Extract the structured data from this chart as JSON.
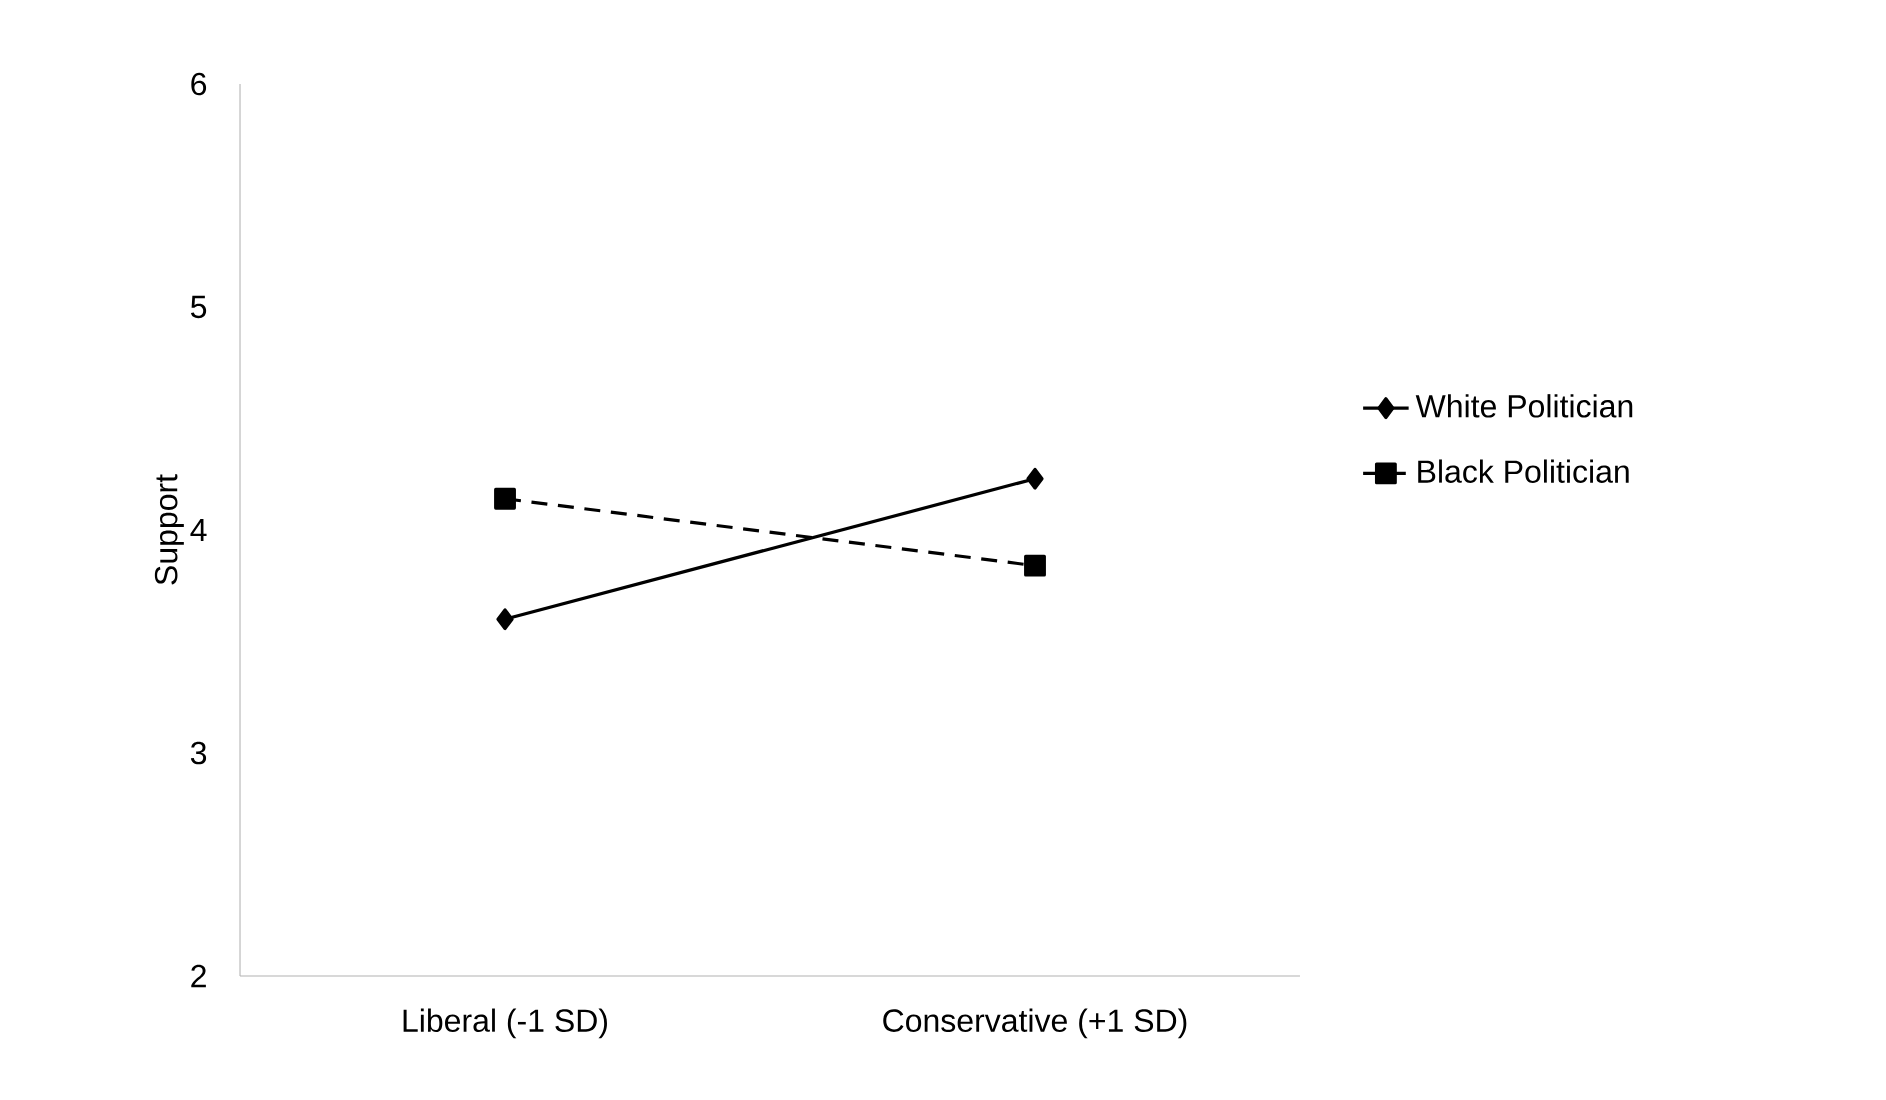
{
  "chart_data": {
    "type": "line",
    "ylabel": "Support",
    "categories": [
      "Liberal (-1 SD)",
      "Conservative (+1 SD)"
    ],
    "series": [
      {
        "name": "White Politician",
        "color": "#000000",
        "values": [
          3.6,
          4.23
        ],
        "marker": "diamond",
        "line_style": "solid"
      },
      {
        "name": "Black Politician",
        "color": "#000000",
        "values": [
          4.14,
          3.84
        ],
        "marker": "square",
        "line_style": "dashed"
      }
    ],
    "ylim": [
      2,
      6
    ],
    "yticks": [
      2,
      3,
      4,
      5,
      6
    ],
    "grid": false,
    "legend": "right"
  }
}
